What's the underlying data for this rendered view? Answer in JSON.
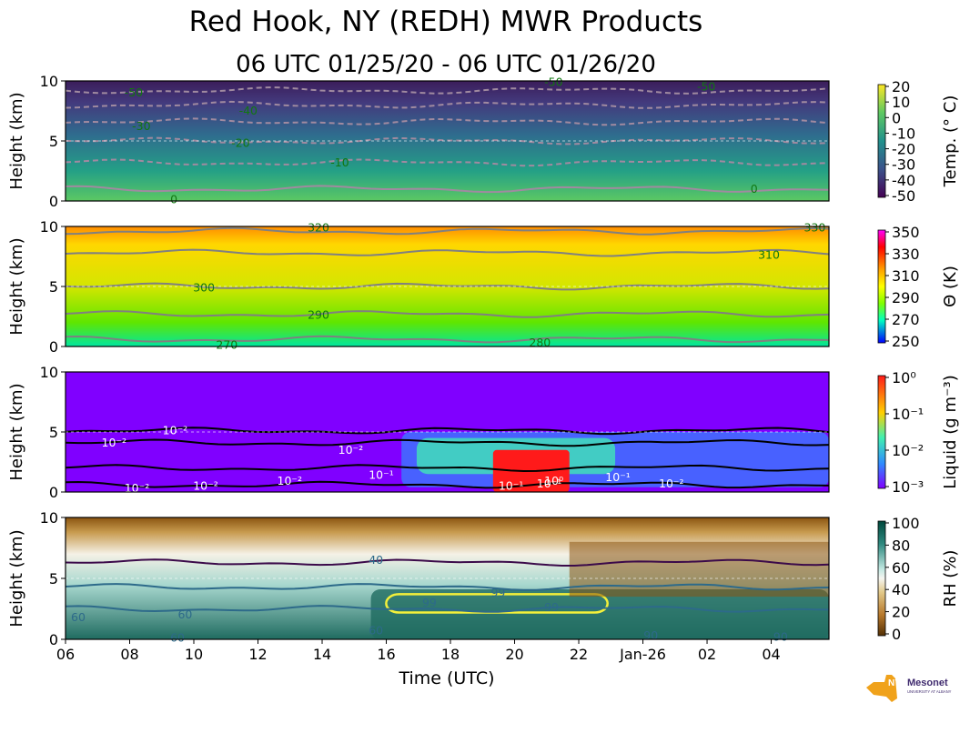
{
  "title": "Red Hook, NY (REDH) MWR Products",
  "subtitle": "06 UTC 01/25/20 - 06 UTC 01/26/20",
  "logo": {
    "text1": "NYS",
    "text2": "Mesonet",
    "text3": "UNIVERSITY AT ALBANY"
  },
  "chart_data": [
    {
      "type": "heatmap",
      "name": "temperature",
      "ylabel": "Height (km)",
      "yticks": [
        0,
        5,
        10
      ],
      "ylim": [
        0,
        10
      ],
      "colorbar_label": "Temp. (° C)",
      "colorbar_ticks": [
        "20",
        "10",
        "0",
        "-10",
        "-20",
        "-30",
        "-40",
        "-50"
      ],
      "contour_labels": [
        "-50",
        "-50",
        "-50",
        "-40",
        "-30",
        "-20",
        "-10",
        "0",
        "0"
      ]
    },
    {
      "type": "heatmap",
      "name": "potential_temperature",
      "ylabel": "Height (km)",
      "yticks": [
        0,
        5,
        10
      ],
      "ylim": [
        0,
        10
      ],
      "colorbar_label": "Θ (K)",
      "colorbar_ticks": [
        "350",
        "330",
        "310",
        "290",
        "270",
        "250"
      ],
      "contour_labels": [
        "320",
        "330",
        "310",
        "300",
        "290",
        "270",
        "280"
      ]
    },
    {
      "type": "heatmap",
      "name": "liquid",
      "ylabel": "Height (km)",
      "yticks": [
        0,
        5,
        10
      ],
      "ylim": [
        0,
        10
      ],
      "colorbar_label": "Liquid (g m⁻³)",
      "colorbar_ticks": [
        "10⁰",
        "10⁻¹",
        "10⁻²",
        "10⁻³"
      ],
      "contour_labels": [
        "10⁻²",
        "10⁻²",
        "10⁻²",
        "10⁻²",
        "10⁻²",
        "10⁻²",
        "10⁻¹",
        "10⁻¹",
        "10⁻¹",
        "10⁰",
        "10⁻¹",
        "10⁻²"
      ]
    },
    {
      "type": "heatmap",
      "name": "relative_humidity",
      "ylabel": "Height (km)",
      "yticks": [
        0,
        5,
        10
      ],
      "ylim": [
        0,
        10
      ],
      "colorbar_label": "RH (%)",
      "colorbar_ticks": [
        "100",
        "80",
        "60",
        "40",
        "20",
        "0"
      ],
      "contour_labels": [
        "40",
        "60",
        "60",
        "60",
        "60",
        "99",
        "99",
        "99",
        "90",
        "90"
      ],
      "xlabel": "Time (UTC)",
      "xticks": [
        "06",
        "08",
        "10",
        "12",
        "14",
        "16",
        "18",
        "20",
        "22",
        "Jan-26",
        "02",
        "04"
      ]
    }
  ]
}
